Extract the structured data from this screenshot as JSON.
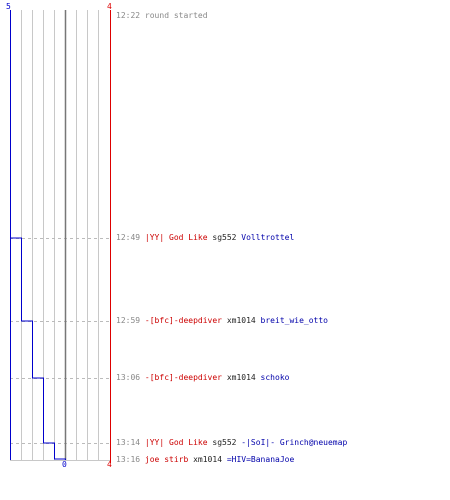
{
  "colors": {
    "blue_team": "#0000cc",
    "red_team": "#dd0000",
    "grid": "#c8c8c8",
    "dashed": "#bbbbbb",
    "center": "#777777",
    "time": "#888888"
  },
  "axis": {
    "left_top_label": "5",
    "right_top_label": "4",
    "bottom_center_label": "0",
    "bottom_right_label": "4"
  },
  "chart_data": {
    "type": "line",
    "start_time": "12:22",
    "events": [
      {
        "time": "12:49",
        "killer": "|YY| God Like",
        "weapon": "sg552",
        "victim": "Volltrottel",
        "blue_left": 4
      },
      {
        "time": "12:59",
        "killer": "-[bfc]-deepdiver",
        "weapon": "xm1014",
        "victim": "breit_wie_otto",
        "blue_left": 3
      },
      {
        "time": "13:06",
        "killer": "-[bfc]-deepdiver",
        "weapon": "xm1014",
        "victim": "schoko",
        "blue_left": 2
      },
      {
        "time": "13:14",
        "killer": "|YY| God Like",
        "weapon": "sg552",
        "victim": "-|SoI|- Grinch@neuemap",
        "blue_left": 1
      },
      {
        "time": "13:16",
        "killer": "joe stirb",
        "weapon": "xm1014",
        "victim": "=HIV=BananaJoe",
        "blue_left": 0
      }
    ]
  },
  "log": {
    "start_entry": {
      "time": "12:22",
      "message": "round started"
    }
  }
}
